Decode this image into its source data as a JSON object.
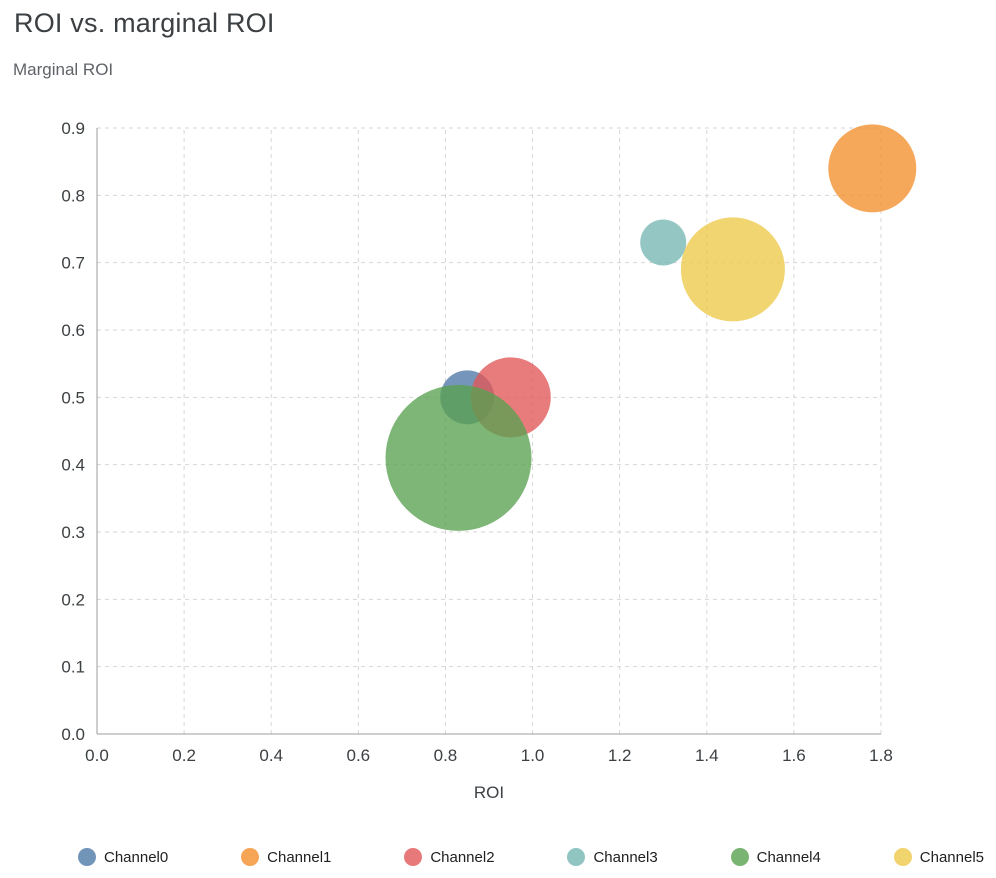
{
  "page": {
    "title": "ROI vs. marginal ROI",
    "y_axis_caption": "Marginal ROI"
  },
  "chart_data": {
    "type": "scatter",
    "variant": "bubble",
    "title": "ROI vs. marginal ROI",
    "xlabel": "ROI",
    "ylabel": "Marginal ROI",
    "xlim": [
      0.0,
      1.8
    ],
    "ylim": [
      0.0,
      0.9
    ],
    "xticks": [
      0.0,
      0.2,
      0.4,
      0.6,
      0.8,
      1.0,
      1.2,
      1.4,
      1.6,
      1.8
    ],
    "yticks": [
      0.0,
      0.1,
      0.2,
      0.3,
      0.4,
      0.5,
      0.6,
      0.7,
      0.8,
      0.9
    ],
    "grid": "dashed",
    "legend_position": "bottom",
    "marker_opacity": 0.78,
    "axis_color": "#9e9e9e",
    "grid_color": "#d6d6d6",
    "tick_label_color": "#3c4043",
    "series": [
      {
        "name": "Channel0",
        "color": "#4e79a7",
        "x": 0.85,
        "y": 0.5,
        "r": 27
      },
      {
        "name": "Channel1",
        "color": "#f28e2b",
        "x": 1.78,
        "y": 0.84,
        "r": 44
      },
      {
        "name": "Channel2",
        "color": "#e15759",
        "x": 0.95,
        "y": 0.5,
        "r": 40
      },
      {
        "name": "Channel3",
        "color": "#76b7b2",
        "x": 1.3,
        "y": 0.73,
        "r": 23
      },
      {
        "name": "Channel4",
        "color": "#59a14f",
        "x": 0.83,
        "y": 0.41,
        "r": 73
      },
      {
        "name": "Channel5",
        "color": "#edc949",
        "x": 1.46,
        "y": 0.69,
        "r": 52
      }
    ]
  }
}
